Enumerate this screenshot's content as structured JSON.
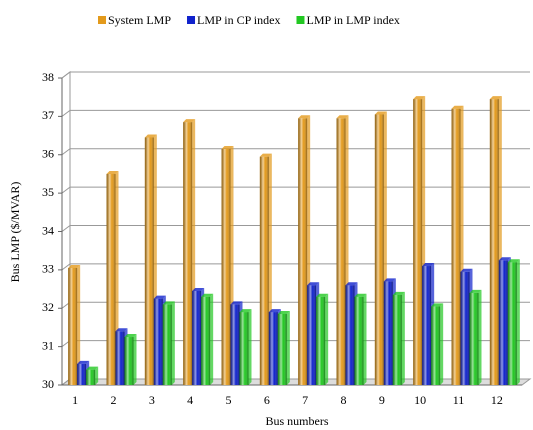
{
  "chart_data": {
    "type": "bar",
    "x_label": "Bus numbers",
    "y_label": "Bus LMP ($/MVAR)",
    "categories": [
      "1",
      "2",
      "3",
      "4",
      "5",
      "6",
      "7",
      "8",
      "9",
      "10",
      "11",
      "12"
    ],
    "series": [
      {
        "name": "System LMP",
        "color": "#e39a1c",
        "values": [
          33.05,
          35.5,
          36.45,
          36.85,
          36.15,
          35.95,
          36.95,
          36.95,
          37.05,
          37.45,
          37.2,
          37.45
        ]
      },
      {
        "name": "LMP in CP index",
        "color": "#1022cc",
        "values": [
          30.55,
          31.4,
          32.25,
          32.45,
          32.1,
          31.9,
          32.6,
          32.6,
          32.7,
          33.1,
          32.95,
          33.25
        ]
      },
      {
        "name": "LMP in LMP index",
        "color": "#22c822",
        "values": [
          30.4,
          31.25,
          32.1,
          32.3,
          31.9,
          31.85,
          32.3,
          32.3,
          32.35,
          32.05,
          32.4,
          33.2
        ]
      }
    ],
    "ylim": [
      30,
      38
    ],
    "yticks": [
      30,
      31,
      32,
      33,
      34,
      35,
      36,
      37,
      38
    ],
    "grid": true
  }
}
